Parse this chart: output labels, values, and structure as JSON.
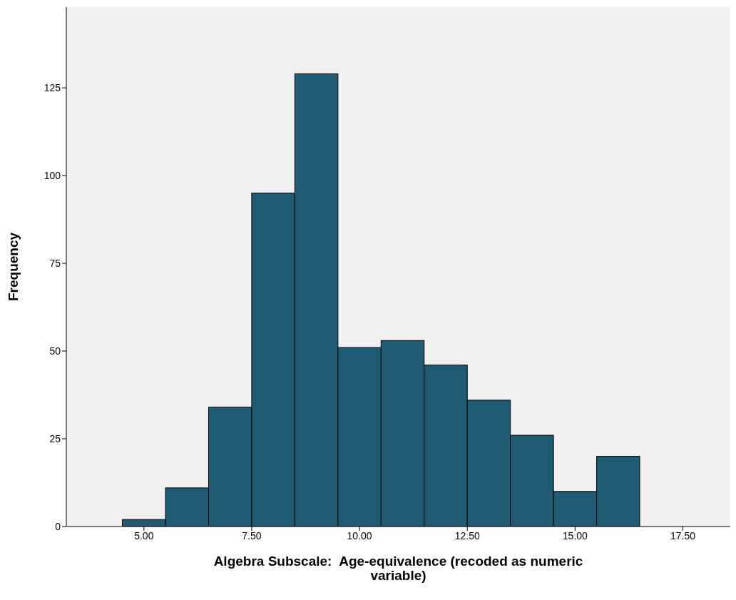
{
  "chart_data": {
    "type": "histogram",
    "xlabel": "Algebra Subscale:  Age-equivalence (recoded as numeric variable)",
    "ylabel": "Frequency",
    "bins": [
      4.5,
      5.5,
      6.5,
      7.5,
      8.5,
      9.5,
      10.5,
      11.5,
      12.5,
      13.5,
      14.5,
      15.5,
      16.5
    ],
    "values": [
      2,
      11,
      34,
      95,
      129,
      51,
      53,
      46,
      36,
      26,
      10,
      20
    ],
    "color": "#1f5b73",
    "xlim": [
      3.2,
      18.6
    ],
    "xticks": [
      {
        "value": 5,
        "label": "5.00"
      },
      {
        "value": 7.5,
        "label": "7.50"
      },
      {
        "value": 10,
        "label": "10.00"
      },
      {
        "value": 12.5,
        "label": "12.50"
      },
      {
        "value": 15,
        "label": "15.00"
      },
      {
        "value": 17.5,
        "label": "17.50"
      }
    ],
    "ylim": [
      0,
      148
    ],
    "yticks": [
      0,
      25,
      50,
      75,
      100,
      125
    ]
  }
}
